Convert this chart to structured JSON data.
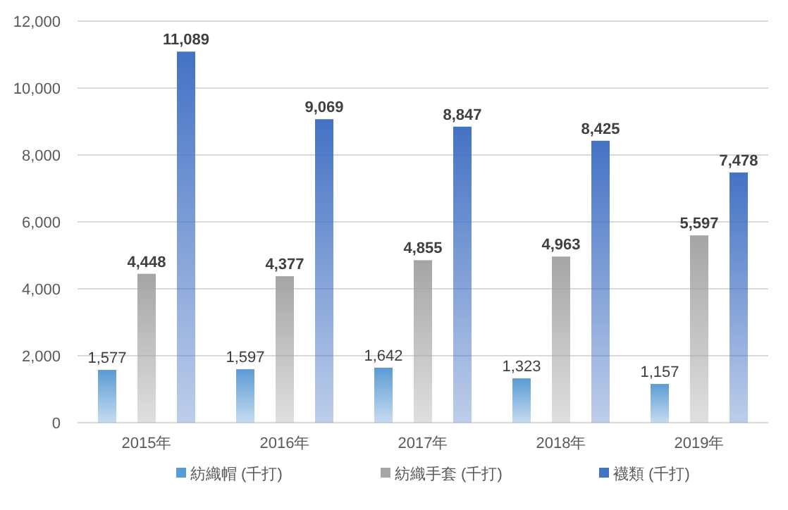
{
  "chart_data": {
    "type": "bar",
    "categories": [
      "2015年",
      "2016年",
      "2017年",
      "2018年",
      "2019年"
    ],
    "series": [
      {
        "name": "紡織帽 (千打)",
        "color": "#5b9bd5",
        "values": [
          1577,
          1597,
          1642,
          1323,
          1157
        ],
        "value_labels": [
          "1,577",
          "1,597",
          "1,642",
          "1,323",
          "1,157"
        ]
      },
      {
        "name": "紡織手套 (千打)",
        "color": "#a5a5a5",
        "values": [
          4448,
          4377,
          4855,
          4963,
          5597
        ],
        "value_labels": [
          "4,448",
          "4,377",
          "4,855",
          "4,963",
          "5,597"
        ]
      },
      {
        "name": "襪類 (千打)",
        "color": "#4472c4",
        "values": [
          11089,
          9069,
          8847,
          8425,
          7478
        ],
        "value_labels": [
          "11,089",
          "9,069",
          "8,847",
          "8,425",
          "7,478"
        ]
      }
    ],
    "ylim": [
      0,
      12000
    ],
    "yticks": [
      0,
      {
        "value": 2000,
        "label": "2,000"
      },
      {
        "value": 4000,
        "label": "4,000"
      },
      {
        "value": 6000,
        "label": "6,000"
      },
      {
        "value": 8000,
        "label": "8,000"
      },
      {
        "value": 10000,
        "label": "10,000"
      },
      {
        "value": 12000,
        "label": "12,000"
      }
    ],
    "grid": "y",
    "legend": "bottom"
  }
}
